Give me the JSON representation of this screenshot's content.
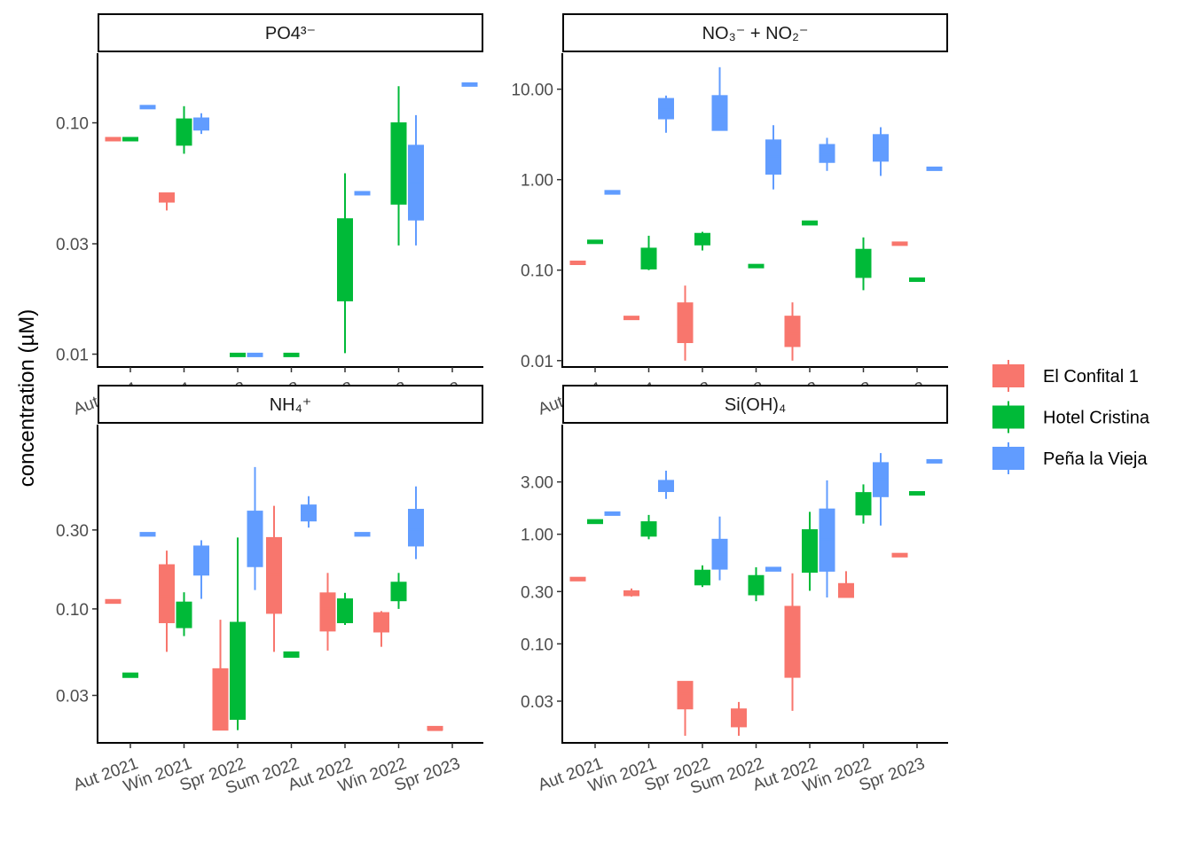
{
  "chart_data": {
    "type": "boxplot",
    "ylabel": "concentration (µM)",
    "y_scale": "log10",
    "categories": [
      "Aut 2021",
      "Win 2021",
      "Spr 2022",
      "Sum 2022",
      "Aut 2022",
      "Win 2022",
      "Spr 2023"
    ],
    "legend": {
      "position": "right",
      "entries": [
        {
          "name": "El Confital 1",
          "color": "#F8766D"
        },
        {
          "name": "Hotel Cristina",
          "color": "#00BA38"
        },
        {
          "name": "Peña la Vieja",
          "color": "#619CFF"
        }
      ]
    },
    "panels": [
      {
        "title": "PO4³⁻",
        "ylim": [
          0.0088,
          0.2
        ],
        "yticks": [
          0.01,
          0.03,
          0.1
        ],
        "ytick_labels": [
          "0.01",
          "0.03",
          "0.10"
        ],
        "series": [
          {
            "name": "El Confital 1",
            "boxes": [
              {
                "cat": "Aut 2021",
                "min": 0.0856,
                "q1": 0.0856,
                "median": 0.0856,
                "q3": 0.0865,
                "max": 0.0865
              },
              {
                "cat": "Win 2021",
                "min": 0.0418,
                "q1": 0.0454,
                "median": 0.0488,
                "q3": 0.0498,
                "max": 0.0498
              }
            ]
          },
          {
            "name": "Hotel Cristina",
            "boxes": [
              {
                "cat": "Aut 2021",
                "min": 0.0856,
                "q1": 0.0856,
                "median": 0.0856,
                "q3": 0.0865,
                "max": 0.0865
              },
              {
                "cat": "Win 2021",
                "min": 0.0735,
                "q1": 0.08,
                "median": 0.09,
                "q3": 0.104,
                "max": 0.118
              },
              {
                "cat": "Spr 2022",
                "min": 0.0099,
                "q1": 0.0099,
                "median": 0.0099,
                "q3": 0.0101,
                "max": 0.0101
              },
              {
                "cat": "Sum 2022",
                "min": 0.0099,
                "q1": 0.0099,
                "median": 0.0099,
                "q3": 0.0101,
                "max": 0.0101
              },
              {
                "cat": "Aut 2022",
                "min": 0.0101,
                "q1": 0.017,
                "median": 0.025,
                "q3": 0.0385,
                "max": 0.0605
              },
              {
                "cat": "Win 2022",
                "min": 0.0295,
                "q1": 0.0445,
                "median": 0.07,
                "q3": 0.1,
                "max": 0.144
              }
            ]
          },
          {
            "name": "Peña la Vieja",
            "boxes": [
              {
                "cat": "Aut 2021",
                "min": 0.117,
                "q1": 0.117,
                "median": 0.117,
                "q3": 0.119,
                "max": 0.119
              },
              {
                "cat": "Win 2021",
                "min": 0.0895,
                "q1": 0.093,
                "median": 0.097,
                "q3": 0.105,
                "max": 0.11
              },
              {
                "cat": "Spr 2022",
                "min": 0.0099,
                "q1": 0.0099,
                "median": 0.0099,
                "q3": 0.0101,
                "max": 0.0101
              },
              {
                "cat": "Aut 2022",
                "min": 0.049,
                "q1": 0.049,
                "median": 0.05,
                "q3": 0.0505,
                "max": 0.0505
              },
              {
                "cat": "Win 2022",
                "min": 0.0295,
                "q1": 0.038,
                "median": 0.055,
                "q3": 0.08,
                "max": 0.108
              },
              {
                "cat": "Spr 2023",
                "min": 0.146,
                "q1": 0.146,
                "median": 0.147,
                "q3": 0.149,
                "max": 0.149
              }
            ]
          }
        ]
      },
      {
        "title": "NO₃⁻ + NO₂⁻",
        "ylim": [
          0.0085,
          25
        ],
        "yticks": [
          0.01,
          0.1,
          1,
          10
        ],
        "ytick_labels": [
          "0.01",
          "0.10",
          "1.00",
          "10.00"
        ],
        "series": [
          {
            "name": "El Confital 1",
            "boxes": [
              {
                "cat": "Aut 2021",
                "min": 0.118,
                "q1": 0.118,
                "median": 0.12,
                "q3": 0.126,
                "max": 0.126
              },
              {
                "cat": "Win 2021",
                "min": 0.0285,
                "q1": 0.0285,
                "median": 0.029,
                "q3": 0.031,
                "max": 0.031
              },
              {
                "cat": "Spr 2022",
                "min": 0.01,
                "q1": 0.0158,
                "median": 0.025,
                "q3": 0.0435,
                "max": 0.0675
              },
              {
                "cat": "Aut 2022",
                "min": 0.01,
                "q1": 0.0143,
                "median": 0.02,
                "q3": 0.031,
                "max": 0.044
              },
              {
                "cat": "Spr 2023",
                "min": 0.189,
                "q1": 0.189,
                "median": 0.195,
                "q3": 0.205,
                "max": 0.205
              }
            ]
          },
          {
            "name": "Hotel Cristina",
            "boxes": [
              {
                "cat": "Aut 2021",
                "min": 0.2,
                "q1": 0.2,
                "median": 0.205,
                "q3": 0.215,
                "max": 0.215
              },
              {
                "cat": "Win 2021",
                "min": 0.1,
                "q1": 0.103,
                "median": 0.13,
                "q3": 0.175,
                "max": 0.24
              },
              {
                "cat": "Spr 2022",
                "min": 0.165,
                "q1": 0.19,
                "median": 0.22,
                "q3": 0.255,
                "max": 0.265
              },
              {
                "cat": "Sum 2022",
                "min": 0.108,
                "q1": 0.108,
                "median": 0.11,
                "q3": 0.116,
                "max": 0.116
              },
              {
                "cat": "Aut 2022",
                "min": 0.315,
                "q1": 0.315,
                "median": 0.33,
                "q3": 0.35,
                "max": 0.35
              },
              {
                "cat": "Win 2022",
                "min": 0.06,
                "q1": 0.083,
                "median": 0.12,
                "q3": 0.17,
                "max": 0.23
              },
              {
                "cat": "Spr 2023",
                "min": 0.075,
                "q1": 0.075,
                "median": 0.078,
                "q3": 0.082,
                "max": 0.082
              }
            ]
          },
          {
            "name": "Peña la Vieja",
            "boxes": [
              {
                "cat": "Aut 2021",
                "min": 0.69,
                "q1": 0.69,
                "median": 0.72,
                "q3": 0.76,
                "max": 0.76
              },
              {
                "cat": "Win 2021",
                "min": 3.3,
                "q1": 4.7,
                "median": 6.0,
                "q3": 7.9,
                "max": 8.5
              },
              {
                "cat": "Spr 2022",
                "min": 3.5,
                "q1": 3.5,
                "median": 5.0,
                "q3": 8.5,
                "max": 17.5
              },
              {
                "cat": "Sum 2022",
                "min": 0.78,
                "q1": 1.15,
                "median": 1.8,
                "q3": 2.75,
                "max": 4.0
              },
              {
                "cat": "Aut 2022",
                "min": 1.25,
                "q1": 1.55,
                "median": 1.9,
                "q3": 2.45,
                "max": 2.9
              },
              {
                "cat": "Win 2022",
                "min": 1.1,
                "q1": 1.6,
                "median": 2.2,
                "q3": 3.15,
                "max": 3.8
              },
              {
                "cat": "Spr 2023",
                "min": 1.27,
                "q1": 1.27,
                "median": 1.32,
                "q3": 1.38,
                "max": 1.38
              }
            ]
          }
        ]
      },
      {
        "title": "NH₄⁺",
        "ylim": [
          0.0155,
          1.3
        ],
        "yticks": [
          0.03,
          0.1,
          0.3
        ],
        "ytick_labels": [
          "0.03",
          "0.10",
          "0.30"
        ],
        "series": [
          {
            "name": "El Confital 1",
            "boxes": [
              {
                "cat": "Aut 2021",
                "min": 0.108,
                "q1": 0.108,
                "median": 0.11,
                "q3": 0.114,
                "max": 0.114
              },
              {
                "cat": "Win 2021",
                "min": 0.055,
                "q1": 0.0825,
                "median": 0.12,
                "q3": 0.185,
                "max": 0.225
              },
              {
                "cat": "Spr 2022",
                "min": 0.0185,
                "q1": 0.0185,
                "median": 0.03,
                "q3": 0.0435,
                "max": 0.086
              },
              {
                "cat": "Sum 2022",
                "min": 0.055,
                "q1": 0.094,
                "median": 0.16,
                "q3": 0.27,
                "max": 0.42
              },
              {
                "cat": "Aut 2022",
                "min": 0.056,
                "q1": 0.0735,
                "median": 0.1,
                "q3": 0.125,
                "max": 0.165
              },
              {
                "cat": "Win 2022",
                "min": 0.059,
                "q1": 0.0725,
                "median": 0.088,
                "q3": 0.095,
                "max": 0.097
              },
              {
                "cat": "Spr 2023",
                "min": 0.0185,
                "q1": 0.0185,
                "median": 0.0185,
                "q3": 0.0195,
                "max": 0.0195
              }
            ]
          },
          {
            "name": "Hotel Cristina",
            "boxes": [
              {
                "cat": "Aut 2021",
                "min": 0.0385,
                "q1": 0.0385,
                "median": 0.0395,
                "q3": 0.041,
                "max": 0.041
              },
              {
                "cat": "Win 2021",
                "min": 0.0685,
                "q1": 0.077,
                "median": 0.095,
                "q3": 0.11,
                "max": 0.126
              },
              {
                "cat": "Spr 2022",
                "min": 0.0185,
                "q1": 0.0215,
                "median": 0.04,
                "q3": 0.083,
                "max": 0.27
              },
              {
                "cat": "Sum 2022",
                "min": 0.051,
                "q1": 0.051,
                "median": 0.0525,
                "q3": 0.055,
                "max": 0.055
              },
              {
                "cat": "Aut 2022",
                "min": 0.08,
                "q1": 0.0825,
                "median": 0.098,
                "q3": 0.115,
                "max": 0.125
              },
              {
                "cat": "Win 2022",
                "min": 0.1,
                "q1": 0.112,
                "median": 0.13,
                "q3": 0.145,
                "max": 0.165
              }
            ]
          },
          {
            "name": "Peña la Vieja",
            "boxes": [
              {
                "cat": "Aut 2021",
                "min": 0.275,
                "q1": 0.275,
                "median": 0.28,
                "q3": 0.29,
                "max": 0.29
              },
              {
                "cat": "Win 2021",
                "min": 0.115,
                "q1": 0.16,
                "median": 0.2,
                "q3": 0.24,
                "max": 0.26
              },
              {
                "cat": "Spr 2022",
                "min": 0.13,
                "q1": 0.18,
                "median": 0.28,
                "q3": 0.39,
                "max": 0.72
              },
              {
                "cat": "Sum 2022",
                "min": 0.31,
                "q1": 0.34,
                "median": 0.38,
                "q3": 0.425,
                "max": 0.48
              },
              {
                "cat": "Aut 2022",
                "min": 0.275,
                "q1": 0.275,
                "median": 0.28,
                "q3": 0.29,
                "max": 0.29
              },
              {
                "cat": "Win 2022",
                "min": 0.2,
                "q1": 0.24,
                "median": 0.3,
                "q3": 0.4,
                "max": 0.55
              }
            ]
          }
        ]
      },
      {
        "title": "Si(OH)₄",
        "ylim": [
          0.0125,
          10
        ],
        "yticks": [
          0.03,
          0.1,
          0.3,
          1,
          3
        ],
        "ytick_labels": [
          "0.03",
          "0.10",
          "0.30",
          "1.00",
          "3.00"
        ],
        "series": [
          {
            "name": "El Confital 1",
            "boxes": [
              {
                "cat": "Aut 2021",
                "min": 0.375,
                "q1": 0.375,
                "median": 0.39,
                "q3": 0.405,
                "max": 0.405
              },
              {
                "cat": "Win 2021",
                "min": 0.27,
                "q1": 0.275,
                "median": 0.285,
                "q3": 0.305,
                "max": 0.32
              },
              {
                "cat": "Spr 2022",
                "min": 0.0145,
                "q1": 0.0255,
                "median": 0.035,
                "q3": 0.0455,
                "max": 0.0455
              },
              {
                "cat": "Sum 2022",
                "min": 0.0145,
                "q1": 0.0175,
                "median": 0.021,
                "q3": 0.0255,
                "max": 0.0295
              },
              {
                "cat": "Aut 2022",
                "min": 0.0245,
                "q1": 0.0495,
                "median": 0.1,
                "q3": 0.22,
                "max": 0.44
              },
              {
                "cat": "Win 2022",
                "min": 0.265,
                "q1": 0.265,
                "median": 0.3,
                "q3": 0.355,
                "max": 0.46
              },
              {
                "cat": "Spr 2023",
                "min": 0.62,
                "q1": 0.62,
                "median": 0.64,
                "q3": 0.67,
                "max": 0.67
              }
            ]
          },
          {
            "name": "Hotel Cristina",
            "boxes": [
              {
                "cat": "Aut 2021",
                "min": 1.25,
                "q1": 1.25,
                "median": 1.3,
                "q3": 1.36,
                "max": 1.36
              },
              {
                "cat": "Win 2021",
                "min": 0.9,
                "q1": 0.96,
                "median": 1.15,
                "q3": 1.3,
                "max": 1.5
              },
              {
                "cat": "Spr 2022",
                "min": 0.33,
                "q1": 0.345,
                "median": 0.4,
                "q3": 0.47,
                "max": 0.52
              },
              {
                "cat": "Sum 2022",
                "min": 0.245,
                "q1": 0.28,
                "median": 0.33,
                "q3": 0.42,
                "max": 0.5
              },
              {
                "cat": "Aut 2022",
                "min": 0.305,
                "q1": 0.45,
                "median": 0.7,
                "q3": 1.1,
                "max": 1.6
              },
              {
                "cat": "Win 2022",
                "min": 1.25,
                "q1": 1.5,
                "median": 2.0,
                "q3": 2.4,
                "max": 2.85
              },
              {
                "cat": "Spr 2023",
                "min": 2.3,
                "q1": 2.3,
                "median": 2.35,
                "q3": 2.45,
                "max": 2.45
              }
            ]
          },
          {
            "name": "Peña la Vieja",
            "boxes": [
              {
                "cat": "Aut 2021",
                "min": 1.5,
                "q1": 1.5,
                "median": 1.55,
                "q3": 1.6,
                "max": 1.6
              },
              {
                "cat": "Win 2021",
                "min": 2.1,
                "q1": 2.45,
                "median": 2.9,
                "q3": 3.1,
                "max": 3.8
              },
              {
                "cat": "Spr 2022",
                "min": 0.38,
                "q1": 0.48,
                "median": 0.65,
                "q3": 0.9,
                "max": 1.45
              },
              {
                "cat": "Sum 2022",
                "min": 0.46,
                "q1": 0.46,
                "median": 0.48,
                "q3": 0.5,
                "max": 0.5
              },
              {
                "cat": "Aut 2022",
                "min": 0.265,
                "q1": 0.46,
                "median": 0.9,
                "q3": 1.7,
                "max": 3.1
              },
              {
                "cat": "Win 2022",
                "min": 1.2,
                "q1": 2.2,
                "median": 3.2,
                "q3": 4.5,
                "max": 5.5
              },
              {
                "cat": "Spr 2023",
                "min": 4.5,
                "q1": 4.5,
                "median": 4.6,
                "q3": 4.8,
                "max": 4.8
              }
            ]
          }
        ]
      }
    ]
  }
}
